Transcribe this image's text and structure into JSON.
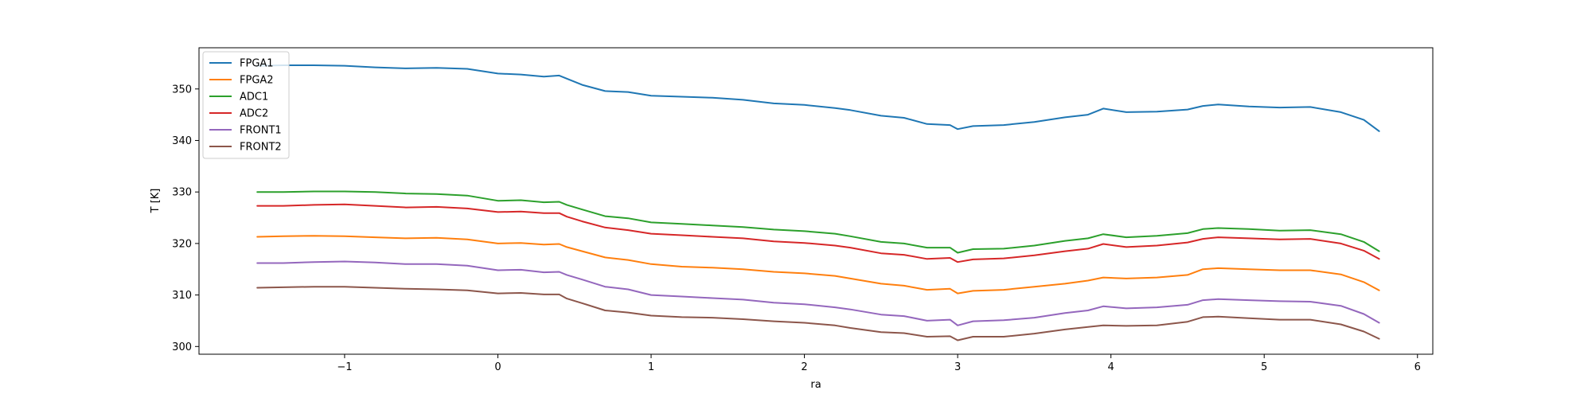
{
  "chart_data": {
    "type": "line",
    "title": "",
    "xlabel": "ra",
    "ylabel": "T [K]",
    "xlim": [
      -1.95,
      6.1
    ],
    "ylim": [
      298.5,
      358.0
    ],
    "xticks": [
      -1,
      0,
      1,
      2,
      3,
      4,
      5,
      6
    ],
    "xtick_labels": [
      "−1",
      "0",
      "1",
      "2",
      "3",
      "4",
      "5",
      "6"
    ],
    "yticks": [
      300,
      310,
      320,
      330,
      340,
      350
    ],
    "ytick_labels": [
      "300",
      "310",
      "320",
      "330",
      "340",
      "350"
    ],
    "grid": false,
    "legend_position": "top-left",
    "x": [
      -1.57,
      -1.4,
      -1.2,
      -1.0,
      -0.8,
      -0.6,
      -0.4,
      -0.2,
      0.0,
      0.15,
      0.3,
      0.4,
      0.45,
      0.55,
      0.7,
      0.85,
      1.0,
      1.2,
      1.4,
      1.6,
      1.8,
      2.0,
      2.2,
      2.3,
      2.5,
      2.65,
      2.8,
      2.95,
      3.0,
      3.1,
      3.3,
      3.5,
      3.7,
      3.85,
      3.95,
      4.1,
      4.3,
      4.5,
      4.6,
      4.7,
      4.9,
      5.1,
      5.3,
      5.5,
      5.65,
      5.75
    ],
    "series": [
      {
        "name": "FPGA1",
        "color": "#1f77b4",
        "values": [
          354.5,
          354.6,
          354.6,
          354.5,
          354.2,
          354.0,
          354.1,
          353.9,
          353.0,
          352.8,
          352.4,
          352.6,
          352.0,
          350.8,
          349.6,
          349.4,
          348.7,
          348.5,
          348.3,
          347.9,
          347.2,
          346.9,
          346.3,
          345.9,
          344.8,
          344.4,
          343.2,
          343.0,
          342.2,
          342.8,
          343.0,
          343.6,
          344.5,
          345.0,
          346.2,
          345.5,
          345.6,
          346.0,
          346.7,
          347.0,
          346.6,
          346.4,
          346.5,
          345.5,
          344.0,
          341.8
        ]
      },
      {
        "name": "FPGA2",
        "color": "#ff7f0e",
        "values": [
          321.3,
          321.4,
          321.5,
          321.4,
          321.2,
          321.0,
          321.1,
          320.8,
          320.0,
          320.1,
          319.8,
          319.9,
          319.3,
          318.5,
          317.3,
          316.8,
          316.0,
          315.5,
          315.3,
          315.0,
          314.5,
          314.2,
          313.7,
          313.2,
          312.2,
          311.8,
          311.0,
          311.2,
          310.3,
          310.8,
          311.0,
          311.6,
          312.2,
          312.8,
          313.4,
          313.2,
          313.4,
          313.9,
          315.0,
          315.2,
          315.0,
          314.8,
          314.8,
          314.0,
          312.5,
          310.9
        ]
      },
      {
        "name": "ADC1",
        "color": "#2ca02c",
        "values": [
          330.0,
          330.0,
          330.1,
          330.1,
          330.0,
          329.7,
          329.6,
          329.3,
          328.3,
          328.4,
          328.0,
          328.1,
          327.5,
          326.6,
          325.3,
          324.9,
          324.1,
          323.8,
          323.5,
          323.2,
          322.7,
          322.4,
          321.9,
          321.4,
          320.3,
          320.0,
          319.2,
          319.2,
          318.2,
          318.9,
          319.0,
          319.6,
          320.5,
          321.0,
          321.8,
          321.2,
          321.5,
          322.0,
          322.8,
          323.0,
          322.8,
          322.5,
          322.6,
          321.8,
          320.3,
          318.5
        ]
      },
      {
        "name": "ADC2",
        "color": "#d62728",
        "values": [
          327.3,
          327.3,
          327.5,
          327.6,
          327.3,
          327.0,
          327.1,
          326.8,
          326.1,
          326.2,
          325.9,
          325.9,
          325.2,
          324.3,
          323.1,
          322.6,
          321.9,
          321.6,
          321.3,
          321.0,
          320.4,
          320.1,
          319.6,
          319.2,
          318.1,
          317.8,
          317.0,
          317.2,
          316.4,
          316.9,
          317.1,
          317.7,
          318.5,
          319.0,
          319.9,
          319.3,
          319.6,
          320.2,
          320.9,
          321.2,
          321.0,
          320.8,
          320.9,
          320.0,
          318.6,
          317.0
        ]
      },
      {
        "name": "FRONT1",
        "color": "#9467bd",
        "values": [
          316.2,
          316.2,
          316.4,
          316.5,
          316.3,
          316.0,
          316.0,
          315.7,
          314.8,
          314.9,
          314.4,
          314.5,
          313.9,
          313.0,
          311.6,
          311.1,
          310.0,
          309.7,
          309.4,
          309.1,
          308.5,
          308.2,
          307.6,
          307.2,
          306.2,
          305.9,
          305.0,
          305.2,
          304.1,
          304.9,
          305.1,
          305.6,
          306.5,
          307.0,
          307.8,
          307.4,
          307.6,
          308.1,
          309.0,
          309.2,
          309.0,
          308.8,
          308.7,
          307.9,
          306.3,
          304.6
        ]
      },
      {
        "name": "FRONT2",
        "color": "#8c564b",
        "values": [
          311.4,
          311.5,
          311.6,
          311.6,
          311.4,
          311.2,
          311.1,
          310.9,
          310.3,
          310.4,
          310.1,
          310.1,
          309.3,
          308.4,
          307.0,
          306.6,
          306.0,
          305.7,
          305.6,
          305.3,
          304.9,
          304.6,
          304.1,
          303.6,
          302.8,
          302.6,
          301.9,
          302.0,
          301.2,
          301.9,
          301.9,
          302.5,
          303.3,
          303.8,
          304.1,
          304.0,
          304.1,
          304.8,
          305.7,
          305.8,
          305.5,
          305.2,
          305.2,
          304.3,
          302.9,
          301.5
        ]
      }
    ]
  }
}
